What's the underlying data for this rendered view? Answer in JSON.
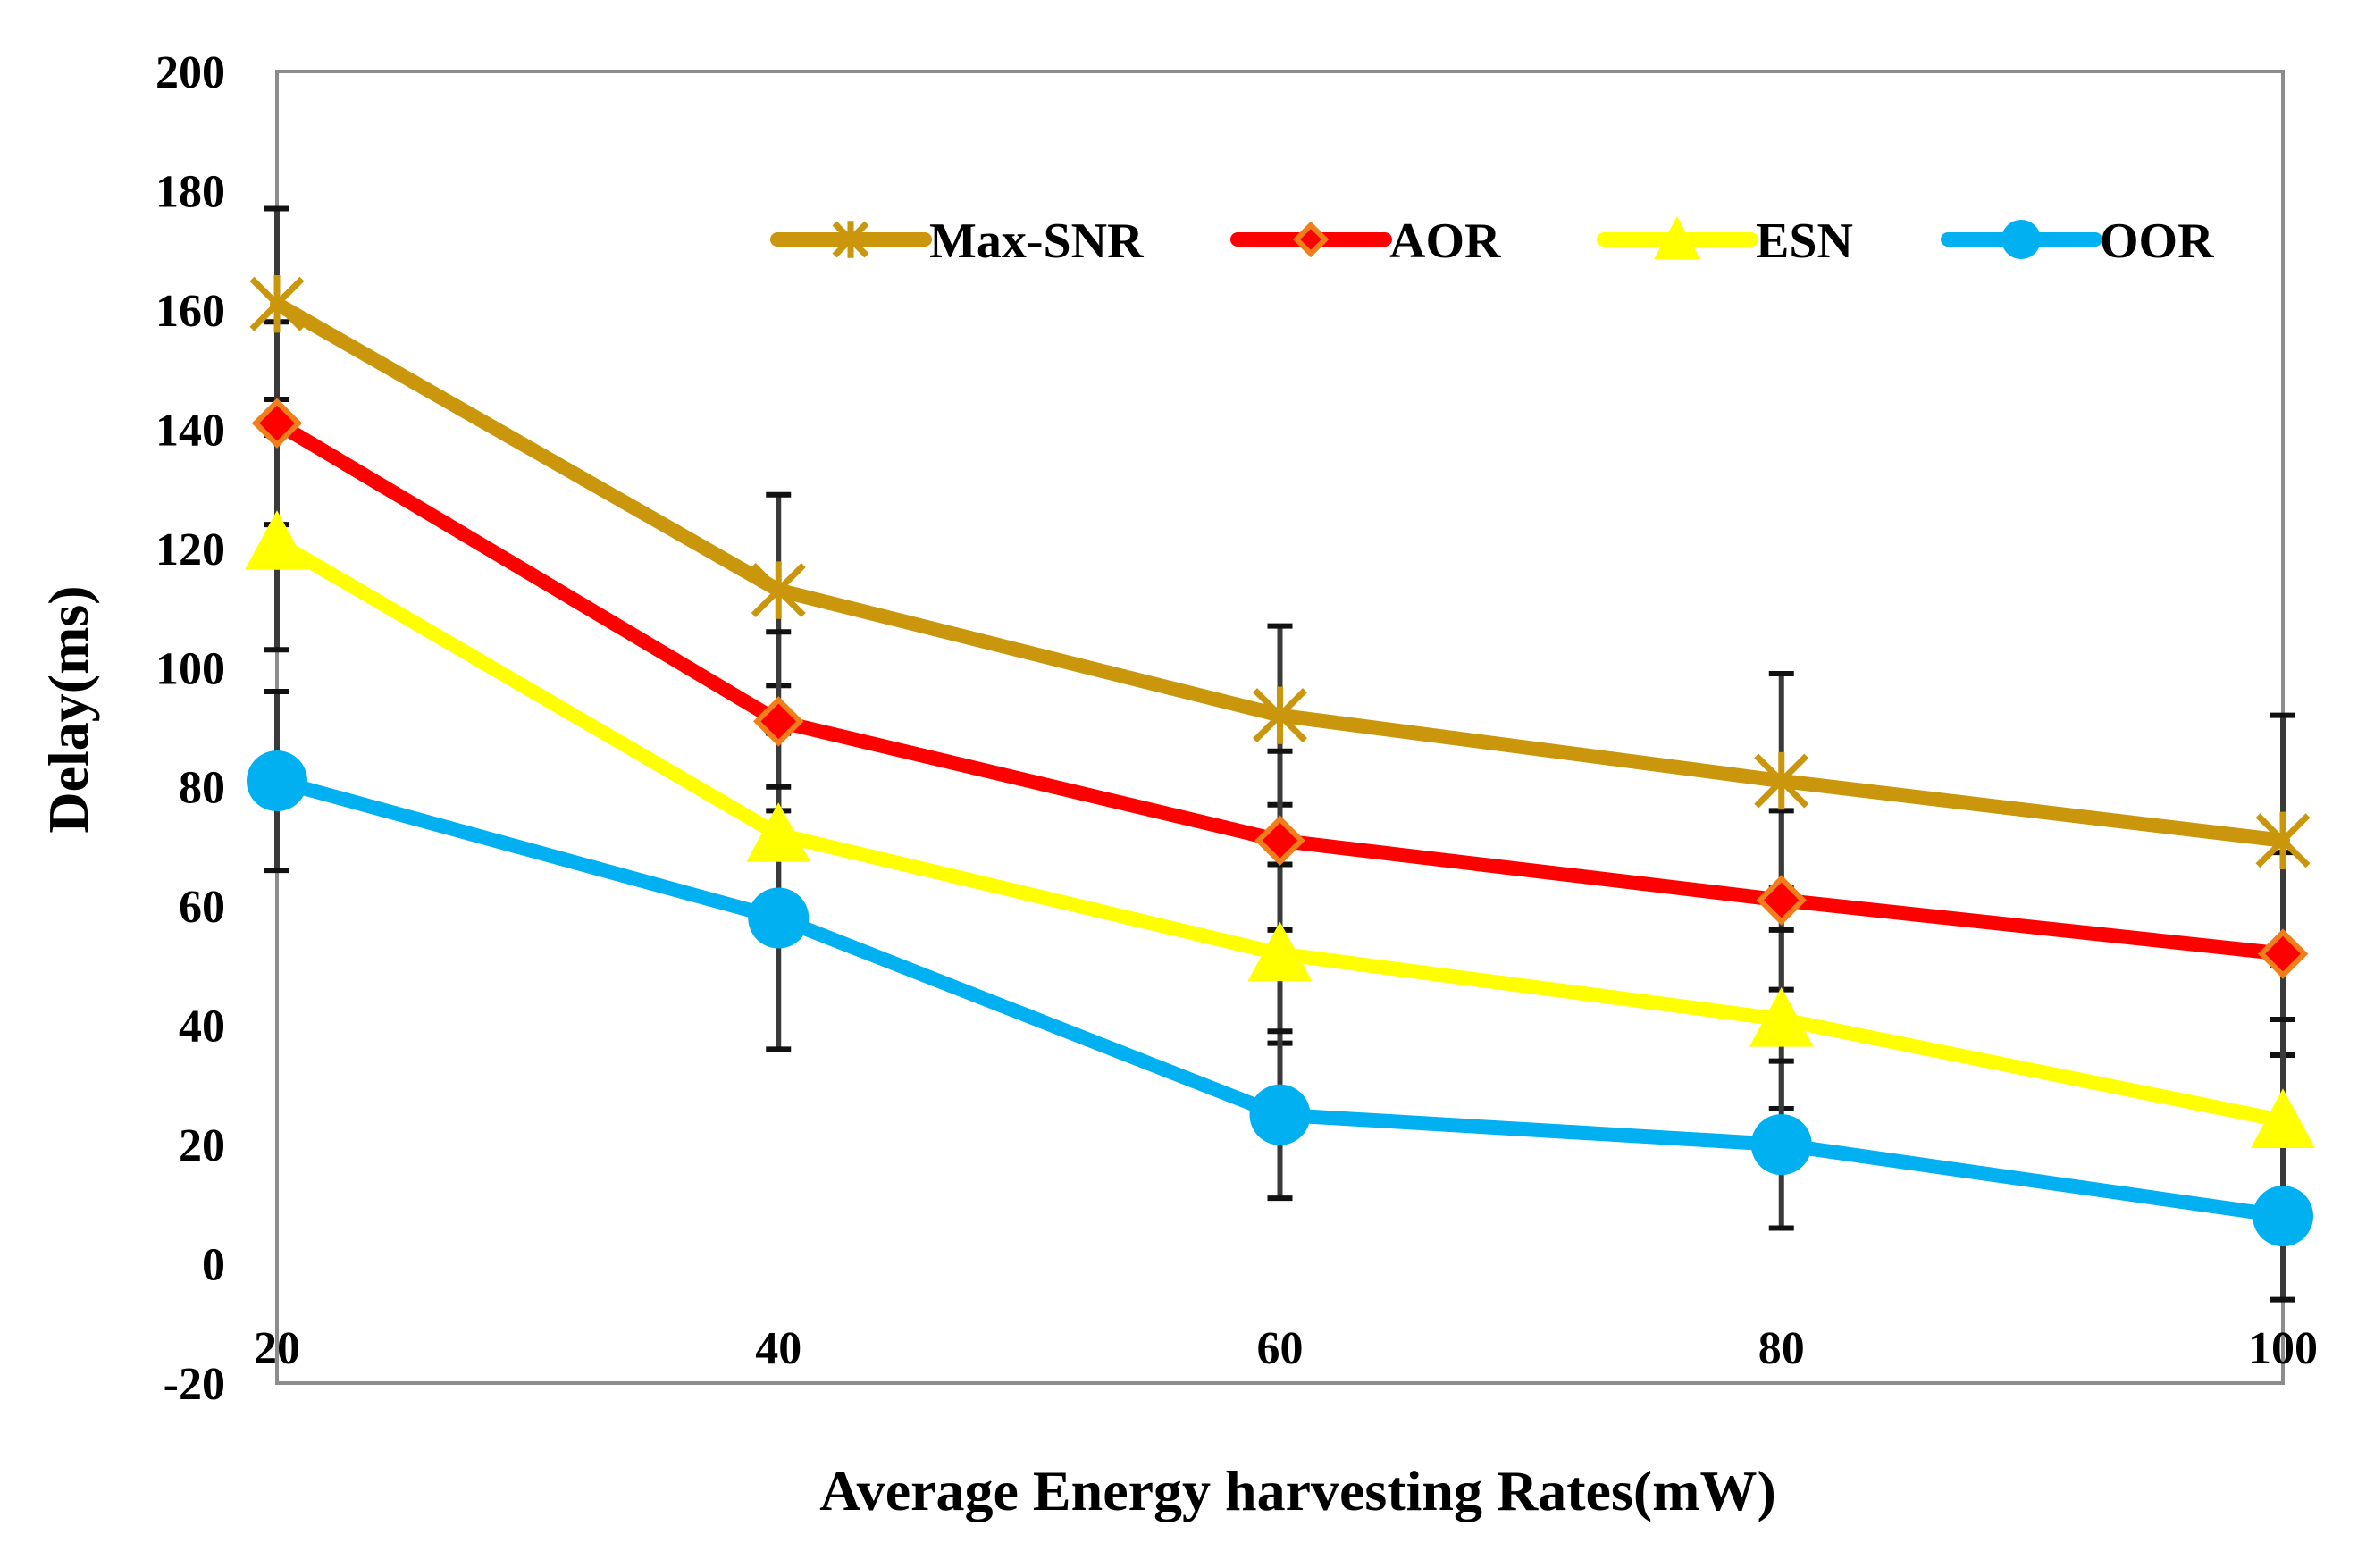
{
  "chart_data": {
    "type": "line",
    "title": "",
    "xlabel": "Average Energy harvesting Rates(mW)",
    "ylabel": "Delay(ms)",
    "categories": [
      "20",
      "40",
      "60",
      "80",
      "100"
    ],
    "x": [
      20,
      40,
      60,
      80,
      100
    ],
    "xlim": [
      20,
      100
    ],
    "ylim": [
      -20,
      200
    ],
    "yticks": [
      "-20",
      "0",
      "20",
      "40",
      "60",
      "80",
      "100",
      "120",
      "140",
      "160",
      "180",
      "200"
    ],
    "grid": false,
    "legend_position": "top-right",
    "series": [
      {
        "name": "Max-SNR",
        "color": "#C9960C",
        "marker": "asterisk",
        "values": [
          161,
          113,
          92,
          81,
          71
        ],
        "errors": [
          16,
          16,
          15,
          18,
          21
        ]
      },
      {
        "name": "AOR",
        "color": "#FF0000",
        "marker": "diamond",
        "values": [
          141,
          91,
          71,
          61,
          52
        ],
        "errors": [
          17,
          15,
          15,
          15,
          17
        ]
      },
      {
        "name": "ESN",
        "color": "#FFFF00",
        "marker": "triangle",
        "values": [
          121,
          72,
          52,
          41,
          24
        ],
        "errors": [
          18,
          17,
          15,
          15,
          17
        ]
      },
      {
        "name": "OOR",
        "color": "#00B0F0",
        "marker": "circle",
        "values": [
          81,
          58,
          25,
          20,
          8
        ],
        "errors": [
          15,
          22,
          14,
          14,
          14
        ]
      }
    ]
  }
}
